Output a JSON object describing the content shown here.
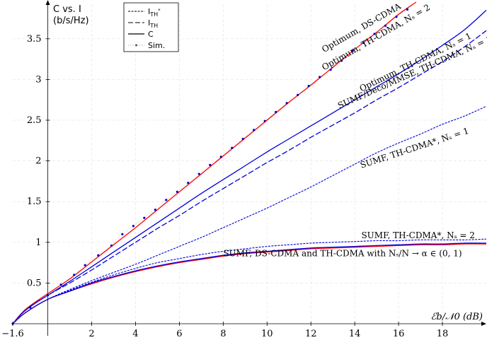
{
  "chart_data": {
    "type": "line",
    "ylabel_line1": "C vs. I",
    "ylabel_line2": "(b/s/Hz)",
    "xlabel": "ℰb/𝒩0 (dB)",
    "xlim": [
      -1.6,
      20
    ],
    "ylim": [
      0,
      3.95
    ],
    "grid": true,
    "x_ticks": [
      -1.6,
      2,
      4,
      6,
      8,
      10,
      12,
      14,
      16,
      18
    ],
    "x_tick_labels": [
      "−1.6",
      "2",
      "4",
      "6",
      "8",
      "10",
      "12",
      "14",
      "16",
      "18"
    ],
    "y_ticks": [
      0.5,
      1,
      1.5,
      2,
      2.5,
      3,
      3.5
    ],
    "y_tick_labels": [
      "0.5",
      "1",
      "1.5",
      "2",
      "2.5",
      "3",
      "3.5"
    ],
    "legend": {
      "position": "top-left",
      "entries": [
        {
          "label": "I_TH*",
          "style": "dashed-fine"
        },
        {
          "label": "I_TH",
          "style": "dashed"
        },
        {
          "label": "C",
          "style": "solid"
        },
        {
          "label": "Sim.",
          "style": "dotted-marker"
        }
      ]
    },
    "series": [
      {
        "style": "solid",
        "color": "#ff0000",
        "x": [
          -1.6,
          -1,
          0,
          1,
          2,
          3,
          4,
          5,
          6,
          7,
          8,
          9,
          10,
          11,
          12,
          13,
          14,
          15,
          16,
          16.8
        ],
        "y": [
          0,
          0.18,
          0.37,
          0.55,
          0.76,
          0.97,
          1.18,
          1.4,
          1.62,
          1.84,
          2.06,
          2.28,
          2.5,
          2.72,
          2.93,
          3.15,
          3.37,
          3.58,
          3.8,
          3.95
        ]
      },
      {
        "style": "solid",
        "color": "#0000dd",
        "x": [
          -1.6,
          -1,
          0,
          1,
          2,
          3,
          4,
          5,
          6,
          7,
          8,
          9,
          10,
          11,
          12,
          13,
          14,
          15,
          16,
          17,
          18,
          19,
          20
        ],
        "y": [
          0,
          0.17,
          0.35,
          0.52,
          0.7,
          0.88,
          1.06,
          1.24,
          1.42,
          1.6,
          1.77,
          1.94,
          2.11,
          2.27,
          2.43,
          2.59,
          2.75,
          2.91,
          3.07,
          3.24,
          3.42,
          3.61,
          3.85
        ]
      },
      {
        "style": "dashed",
        "color": "#0000dd",
        "x": [
          -1.6,
          -1,
          0,
          1,
          2,
          3,
          4,
          5,
          6,
          7,
          8,
          9,
          10,
          11,
          12,
          13,
          14,
          15,
          16,
          17,
          18,
          19,
          20
        ],
        "y": [
          0,
          0.17,
          0.35,
          0.5,
          0.66,
          0.83,
          1.0,
          1.17,
          1.33,
          1.5,
          1.66,
          1.82,
          1.98,
          2.13,
          2.29,
          2.44,
          2.59,
          2.75,
          2.9,
          3.06,
          3.22,
          3.4,
          3.6
        ]
      },
      {
        "style": "dashed-fine",
        "color": "#0000dd",
        "x": [
          -1.6,
          -1,
          0,
          1,
          2,
          3,
          4,
          5,
          6,
          7,
          8,
          9,
          10,
          11,
          12,
          13,
          14,
          15,
          16,
          17,
          18,
          19,
          20
        ],
        "y": [
          0,
          0.14,
          0.3,
          0.42,
          0.53,
          0.63,
          0.73,
          0.84,
          0.95,
          1.06,
          1.18,
          1.3,
          1.42,
          1.55,
          1.68,
          1.82,
          1.96,
          2.1,
          2.22,
          2.33,
          2.45,
          2.55,
          2.67
        ]
      },
      {
        "style": "dashed-fine",
        "color": "#0000dd",
        "x": [
          -1.6,
          -1,
          0,
          1,
          2,
          3,
          4,
          5,
          6,
          7,
          8,
          9,
          10,
          11,
          12,
          13,
          14,
          15,
          16,
          17,
          18,
          19,
          20
        ],
        "y": [
          0,
          0.14,
          0.3,
          0.41,
          0.51,
          0.6,
          0.68,
          0.75,
          0.8,
          0.85,
          0.89,
          0.92,
          0.95,
          0.97,
          0.99,
          1.0,
          1.01,
          1.02,
          1.02,
          1.03,
          1.03,
          1.03,
          1.04
        ]
      },
      {
        "style": "solid",
        "color": "#ff0000",
        "x": [
          -1.6,
          -1,
          0,
          1,
          2,
          3,
          4,
          5,
          6,
          7,
          8,
          9,
          10,
          11,
          12,
          13,
          14,
          15,
          16,
          17,
          18,
          19,
          20
        ],
        "y": [
          0,
          0.14,
          0.3,
          0.4,
          0.49,
          0.57,
          0.64,
          0.7,
          0.75,
          0.79,
          0.83,
          0.86,
          0.88,
          0.9,
          0.92,
          0.93,
          0.94,
          0.95,
          0.96,
          0.97,
          0.97,
          0.98,
          0.98
        ]
      },
      {
        "style": "solid",
        "color": "#0000dd",
        "x": [
          -1.6,
          -1,
          0,
          1,
          2,
          3,
          4,
          5,
          6,
          7,
          8,
          9,
          10,
          11,
          12,
          13,
          14,
          15,
          16,
          17,
          18,
          19,
          20
        ],
        "y": [
          0,
          0.14,
          0.3,
          0.4,
          0.5,
          0.58,
          0.65,
          0.71,
          0.76,
          0.8,
          0.84,
          0.87,
          0.89,
          0.91,
          0.93,
          0.94,
          0.95,
          0.96,
          0.97,
          0.98,
          0.98,
          0.99,
          0.99
        ]
      },
      {
        "style": "dotted-marker",
        "color": "#0000cc",
        "x": [
          -1.6,
          -0.8,
          0,
          0.6,
          1.2,
          1.7,
          2.3,
          2.9,
          3.4,
          3.9,
          4.4,
          4.9,
          5.4,
          5.9,
          6.4,
          6.9,
          7.4,
          7.9,
          8.4,
          8.9,
          9.4,
          9.9,
          10.4,
          10.9,
          11.4,
          11.9,
          12.4,
          12.9,
          13.4,
          13.9,
          14.4,
          14.9,
          15.4,
          15.9,
          16.4
        ],
        "y": [
          0,
          0.2,
          0.35,
          0.48,
          0.6,
          0.72,
          0.84,
          0.96,
          1.1,
          1.2,
          1.3,
          1.4,
          1.52,
          1.62,
          1.73,
          1.84,
          1.95,
          2.05,
          2.16,
          2.27,
          2.38,
          2.49,
          2.6,
          2.71,
          2.81,
          2.92,
          3.03,
          3.12,
          3.23,
          3.35,
          3.45,
          3.56,
          3.66,
          3.77,
          3.86
        ]
      }
    ],
    "annotations": [
      {
        "text": "Optimum, DS-CDMA",
        "x": 12.6,
        "y": 3.33,
        "angle": -30
      },
      {
        "text": "Optimum, TH-CDMA, Nₛ = 2",
        "x": 12.6,
        "y": 3.11,
        "angle": -30
      },
      {
        "text": "Optimum, TH-CDMA, Nₛ = 1",
        "x": 14.3,
        "y": 2.85,
        "angle": -26
      },
      {
        "text": "SUMF/Deco/MMSE, TH-CDMA, Nₛ = 1",
        "x": 13.3,
        "y": 2.64,
        "angle": -24
      },
      {
        "text": "SUMF, TH-CDMA*, Nₛ = 1",
        "x": 14.3,
        "y": 1.91,
        "angle": -18
      },
      {
        "text": "SUMF, TH-CDMA*, Nₛ = 2",
        "x": 14.3,
        "y": 1.05,
        "angle": 0
      },
      {
        "text": "SUMF, DS-CDMA and TH-CDMA with Nₛ/N → α ∈ (0, 1)",
        "x": 8.0,
        "y": 0.83,
        "angle": 0
      }
    ]
  }
}
